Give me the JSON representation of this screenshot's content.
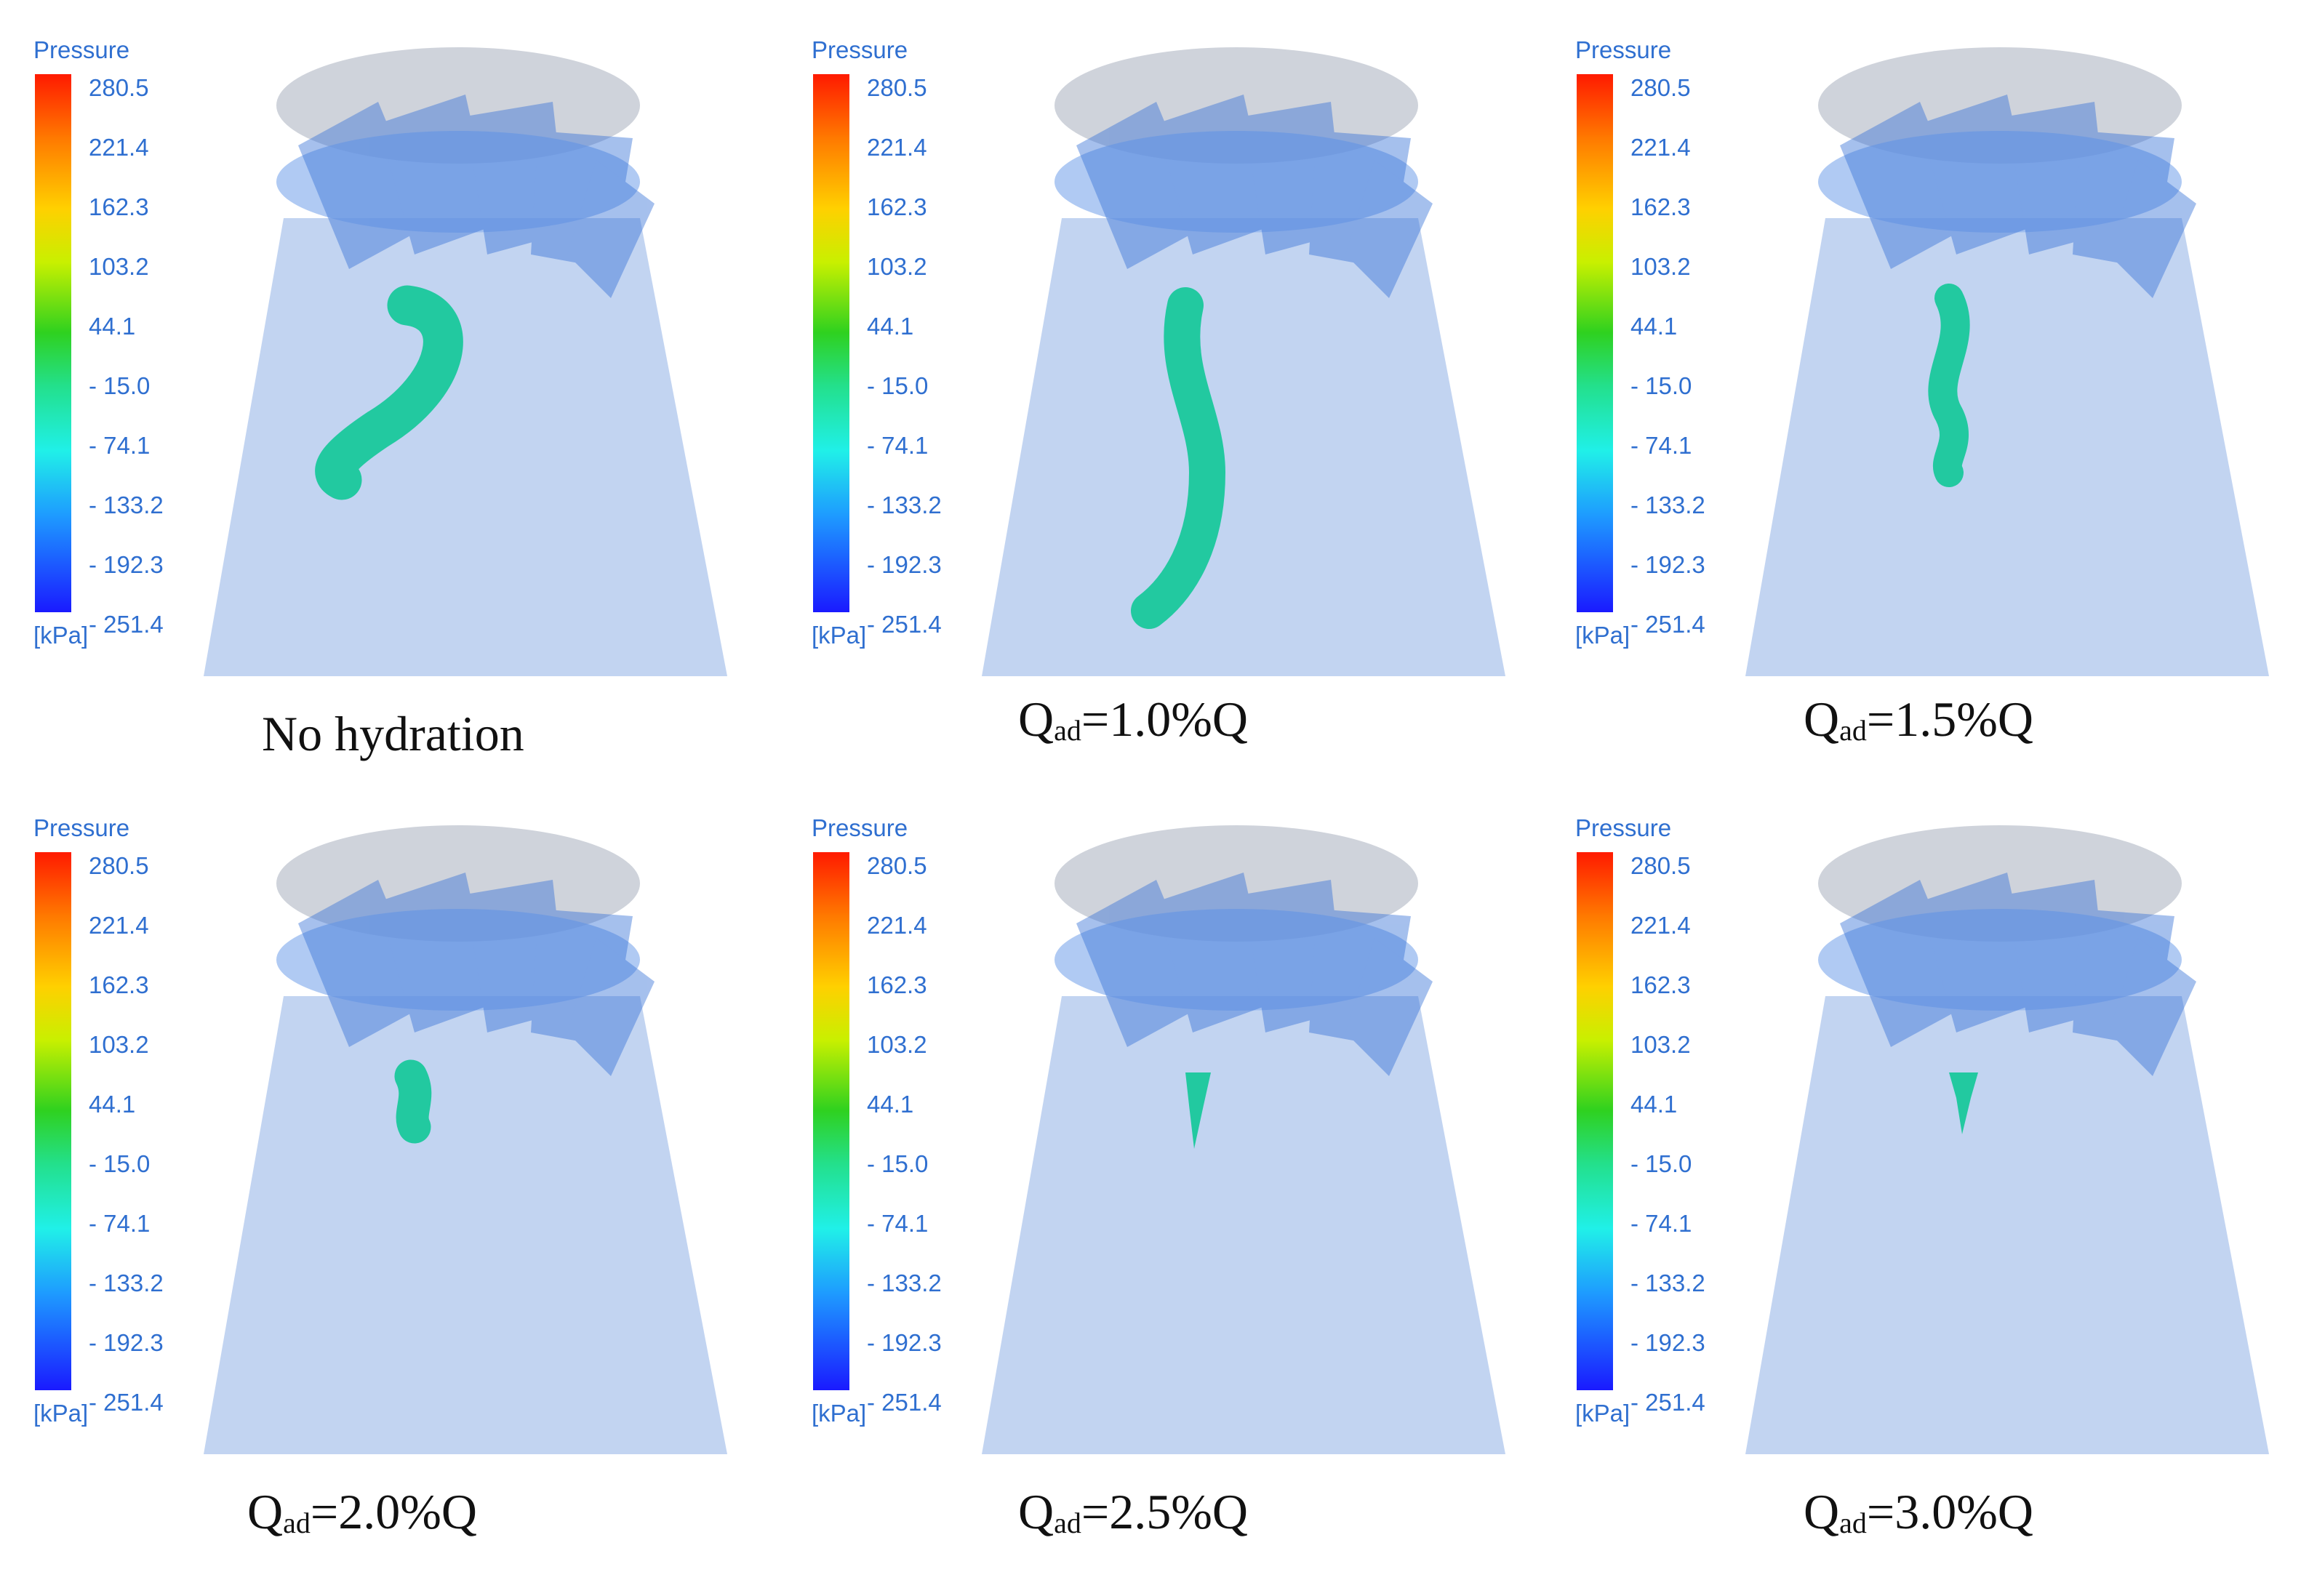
{
  "legend": {
    "title": "Pressure",
    "unit": "[kPa]",
    "ticks": [
      "280.5",
      "221.4",
      "162.3",
      "103.2",
      "44.1",
      "- 15.0",
      "- 74.1",
      "- 133.2",
      "- 192.3",
      "- 251.4"
    ]
  },
  "panels": [
    {
      "caption_main": "No hydration",
      "caption_q": "",
      "caption_sub": "",
      "caption_rest": ""
    },
    {
      "caption_main": "",
      "caption_q": "Q",
      "caption_sub": "ad",
      "caption_rest": "=1.0%Q"
    },
    {
      "caption_main": "",
      "caption_q": "Q",
      "caption_sub": "ad",
      "caption_rest": "=1.5%Q"
    },
    {
      "caption_main": "",
      "caption_q": "Q",
      "caption_sub": "ad",
      "caption_rest": "=2.0%Q"
    },
    {
      "caption_main": "",
      "caption_q": "Q",
      "caption_sub": "ad",
      "caption_rest": "=2.5%Q"
    },
    {
      "caption_main": "",
      "caption_q": "Q",
      "caption_sub": "ad",
      "caption_rest": "=3.0%Q"
    }
  ],
  "colors": {
    "legend_text": "#2f6fd0",
    "draft_tube": "#b7cdee",
    "runner_blades": "#3a74d8",
    "vortex_rope": "#22c9a0",
    "caption_text": "#111111"
  }
}
